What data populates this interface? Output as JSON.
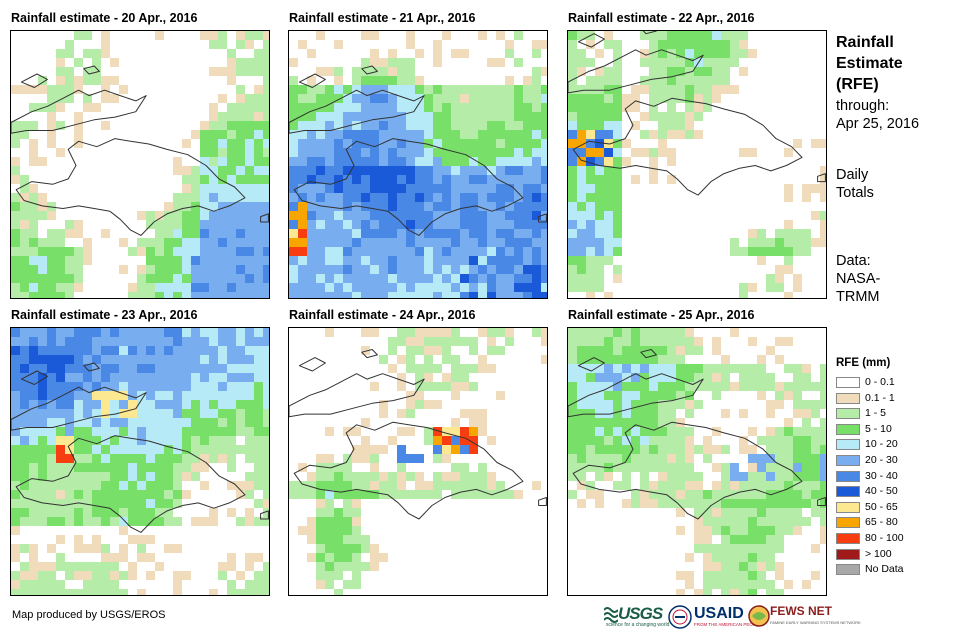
{
  "panels": [
    {
      "title": "Rainfall estimate - 20 Apr., 2016",
      "seed": 20,
      "profile": "p20"
    },
    {
      "title": "Rainfall estimate - 21 Apr., 2016",
      "seed": 21,
      "profile": "p21"
    },
    {
      "title": "Rainfall estimate - 22 Apr., 2016",
      "seed": 22,
      "profile": "p22"
    },
    {
      "title": "Rainfall estimate - 23 Apr., 2016",
      "seed": 23,
      "profile": "p23"
    },
    {
      "title": "Rainfall estimate - 24 Apr., 2016",
      "seed": 24,
      "profile": "p24"
    },
    {
      "title": "Rainfall estimate - 25 Apr., 2016",
      "seed": 25,
      "profile": "p25"
    }
  ],
  "side": {
    "title_line1": "Rainfall",
    "title_line2": "Estimate",
    "title_line3": "(RFE)",
    "through_label": "through:",
    "through_date": "Apr 25, 2016",
    "daily_line1": "Daily",
    "daily_line2": "Totals",
    "data_line1": "Data:",
    "data_line2": "NASA-",
    "data_line3": "TRMM"
  },
  "legend": {
    "title": "RFE (mm)",
    "classes": [
      {
        "label": "0 - 0.1",
        "color": "#ffffff"
      },
      {
        "label": "0.1 - 1",
        "color": "#f0dcba"
      },
      {
        "label": "1 - 5",
        "color": "#b4eca8"
      },
      {
        "label": "5 - 10",
        "color": "#78e068"
      },
      {
        "label": "10 - 20",
        "color": "#b6eaf6"
      },
      {
        "label": "20 - 30",
        "color": "#78aef0"
      },
      {
        "label": "30 - 40",
        "color": "#4a88e6"
      },
      {
        "label": "40 - 50",
        "color": "#1a5ad8"
      },
      {
        "label": "50 - 65",
        "color": "#fbe890"
      },
      {
        "label": "65 - 80",
        "color": "#f9a500"
      },
      {
        "label": "80 - 100",
        "color": "#f83e10"
      },
      {
        "label": "> 100",
        "color": "#a01a1a"
      },
      {
        "label": "No Data",
        "color": "#a8a8a8"
      }
    ]
  },
  "footer": "Map produced by USGS/EROS",
  "logos": {
    "usgs": "USGS",
    "usgs_tagline": "science for a changing world",
    "usaid": "USAID",
    "usaid_tagline": "FROM THE AMERICAN PEOPLE",
    "fews": "FEWS NET",
    "fews_tagline": "FAMINE EARLY WARNING SYSTEMS NETWORK"
  }
}
